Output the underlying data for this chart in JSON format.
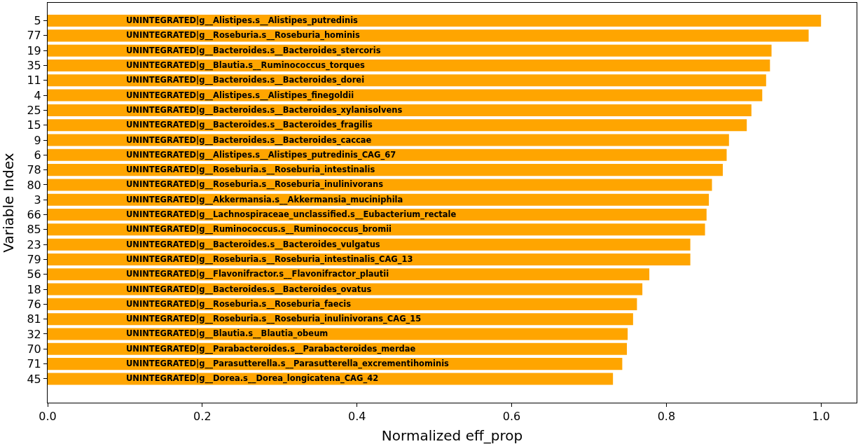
{
  "chart_data": {
    "type": "bar",
    "orientation": "horizontal",
    "xlabel": "Normalized eff_prop",
    "ylabel": "Variable Index",
    "categories": [
      "5",
      "77",
      "19",
      "35",
      "11",
      "4",
      "25",
      "15",
      "9",
      "6",
      "78",
      "80",
      "3",
      "66",
      "85",
      "23",
      "79",
      "56",
      "18",
      "76",
      "81",
      "32",
      "70",
      "71",
      "45"
    ],
    "values": [
      1.0,
      0.984,
      0.936,
      0.934,
      0.929,
      0.924,
      0.91,
      0.904,
      0.881,
      0.878,
      0.873,
      0.859,
      0.855,
      0.852,
      0.85,
      0.831,
      0.831,
      0.778,
      0.769,
      0.762,
      0.757,
      0.75,
      0.749,
      0.743,
      0.731
    ],
    "color": "#ffa500",
    "xlim": [
      0,
      1.046
    ],
    "xticks": [
      {
        "value": 0,
        "label": "0.0"
      },
      {
        "value": 0.2,
        "label": "0.2"
      },
      {
        "value": 0.4,
        "label": "0.4"
      },
      {
        "value": 0.6,
        "label": "0.6"
      },
      {
        "value": 0.8,
        "label": "0.8"
      },
      {
        "value": 1.0,
        "label": "1.0"
      }
    ],
    "grid": false,
    "annotations": [
      "UNINTEGRATED|g__Alistipes.s__Alistipes_putredinis",
      "UNINTEGRATED|g__Roseburia.s__Roseburia_hominis",
      "UNINTEGRATED|g__Bacteroides.s__Bacteroides_stercoris",
      "UNINTEGRATED|g__Blautia.s__Ruminococcus_torques",
      "UNINTEGRATED|g__Bacteroides.s__Bacteroides_dorei",
      "UNINTEGRATED|g__Alistipes.s__Alistipes_finegoldii",
      "UNINTEGRATED|g__Bacteroides.s__Bacteroides_xylanisolvens",
      "UNINTEGRATED|g__Bacteroides.s__Bacteroides_fragilis",
      "UNINTEGRATED|g__Bacteroides.s__Bacteroides_caccae",
      "UNINTEGRATED|g__Alistipes.s__Alistipes_putredinis_CAG_67",
      "UNINTEGRATED|g__Roseburia.s__Roseburia_intestinalis",
      "UNINTEGRATED|g__Roseburia.s__Roseburia_inulinivorans",
      "UNINTEGRATED|g__Akkermansia.s__Akkermansia_muciniphila",
      "UNINTEGRATED|g__Lachnospiraceae_unclassified.s__Eubacterium_rectale",
      "UNINTEGRATED|g__Ruminococcus.s__Ruminococcus_bromii",
      "UNINTEGRATED|g__Bacteroides.s__Bacteroides_vulgatus",
      "UNINTEGRATED|g__Roseburia.s__Roseburia_intestinalis_CAG_13",
      "UNINTEGRATED|g__Flavonifractor.s__Flavonifractor_plautii",
      "UNINTEGRATED|g__Bacteroides.s__Bacteroides_ovatus",
      "UNINTEGRATED|g__Roseburia.s__Roseburia_faecis",
      "UNINTEGRATED|g__Roseburia.s__Roseburia_inulinivorans_CAG_15",
      "UNINTEGRATED|g__Blautia.s__Blautia_obeum",
      "UNINTEGRATED|g__Parabacteroides.s__Parabacteroides_merdae",
      "UNINTEGRATED|g__Parasutterella.s__Parasutterella_excrementihominis",
      "UNINTEGRATED|g__Dorea.s__Dorea_longicatena_CAG_42"
    ]
  }
}
